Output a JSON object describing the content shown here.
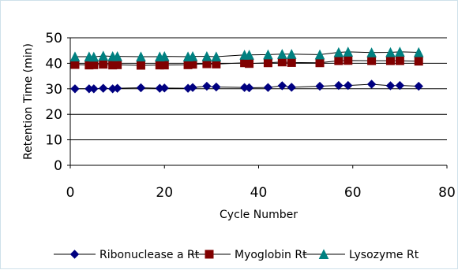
{
  "chart_data": {
    "type": "line",
    "title": "",
    "xlabel": "Cycle Number",
    "ylabel": "Retention Time (min)",
    "xlim": [
      0,
      80
    ],
    "ylim": [
      0,
      50
    ],
    "xticks": [
      0,
      20,
      40,
      60,
      80
    ],
    "yticks": [
      0,
      10,
      20,
      30,
      40,
      50
    ],
    "grid": "y-major",
    "legend_position": "bottom",
    "series": [
      {
        "name": "Ribonuclease a Rt",
        "color": "#000080",
        "marker": "diamond",
        "x": [
          1,
          4,
          5,
          7,
          9,
          10,
          15,
          19,
          20,
          25,
          26,
          29,
          31,
          37,
          38,
          42,
          45,
          47,
          53,
          57,
          59,
          64,
          68,
          70,
          74
        ],
        "y": [
          30,
          30,
          30,
          30.2,
          30,
          30.2,
          30.4,
          30.2,
          30.3,
          30.2,
          30.5,
          31,
          30.7,
          30.5,
          30.4,
          30.5,
          31.2,
          30.6,
          31,
          31.3,
          31.3,
          31.8,
          31.2,
          31.3,
          31
        ]
      },
      {
        "name": "Myoglobin Rt",
        "color": "#800000",
        "marker": "square",
        "x": [
          1,
          4,
          5,
          7,
          9,
          10,
          15,
          19,
          20,
          25,
          26,
          29,
          31,
          37,
          38,
          42,
          45,
          47,
          53,
          57,
          59,
          64,
          68,
          70,
          74
        ],
        "y": [
          39.5,
          39.3,
          39.4,
          39.6,
          39.3,
          39.4,
          39.2,
          39.3,
          39.3,
          39.4,
          39.6,
          39.8,
          39.7,
          40.2,
          39.9,
          40.2,
          40.5,
          40.3,
          40.2,
          41,
          41.1,
          41,
          41,
          41,
          40.8
        ]
      },
      {
        "name": "Lysozyme Rt",
        "color": "#008080",
        "marker": "triangle",
        "x": [
          1,
          4,
          5,
          7,
          9,
          10,
          15,
          19,
          20,
          25,
          26,
          29,
          31,
          37,
          38,
          42,
          45,
          47,
          53,
          57,
          59,
          64,
          68,
          70,
          74
        ],
        "y": [
          42.6,
          42.6,
          42.5,
          42.9,
          42.7,
          42.7,
          42.6,
          42.6,
          42.7,
          42.6,
          42.7,
          42.7,
          42.6,
          43.3,
          43.3,
          43.4,
          43.6,
          43.6,
          43.4,
          44.3,
          44.5,
          44.2,
          44.3,
          44.5,
          44.3
        ]
      }
    ]
  }
}
